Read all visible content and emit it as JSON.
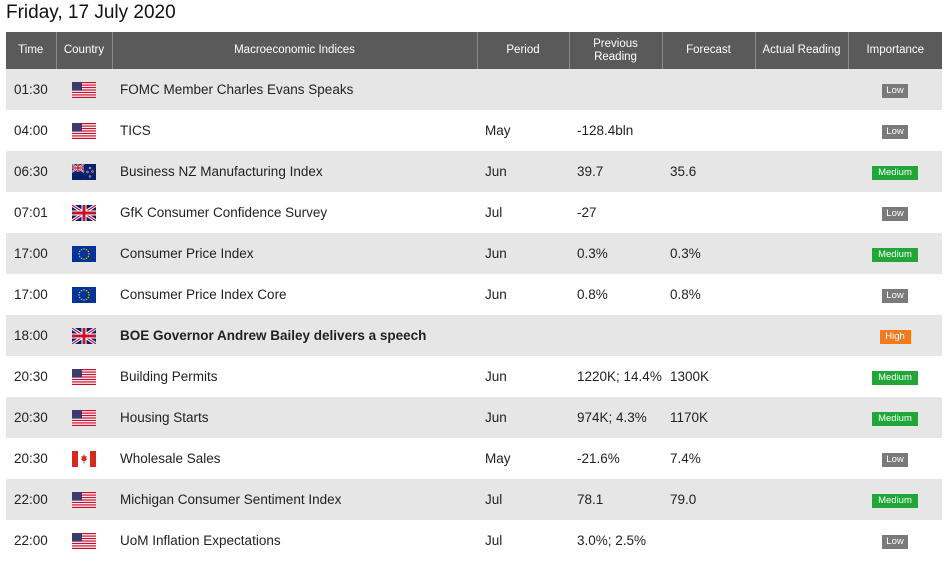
{
  "page_title": "Friday, 17 July 2020",
  "columns": {
    "time": "Time",
    "country": "Country",
    "indices": "Macroeconomic Indices",
    "period": "Period",
    "previous": "Previous Reading",
    "forecast": "Forecast",
    "actual": "Actual Reading",
    "importance": "Importance"
  },
  "rows": [
    {
      "time": "01:30",
      "country_icon": "us-flag-icon",
      "index": "FOMC Member Charles Evans Speaks",
      "period": "",
      "previous": "",
      "forecast": "",
      "actual": "",
      "importance": "Low"
    },
    {
      "time": "04:00",
      "country_icon": "us-flag-icon",
      "index": "TICS",
      "period": "May",
      "previous": "-128.4bln",
      "forecast": "",
      "actual": "",
      "importance": "Low"
    },
    {
      "time": "06:30",
      "country_icon": "nz-flag-icon",
      "index": "Business NZ Manufacturing Index",
      "period": "Jun",
      "previous": "39.7",
      "forecast": "35.6",
      "actual": "",
      "importance": "Medium"
    },
    {
      "time": "07:01",
      "country_icon": "uk-flag-icon",
      "index": "GfK Consumer Confidence Survey",
      "period": "Jul",
      "previous": "-27",
      "forecast": "",
      "actual": "",
      "importance": "Low"
    },
    {
      "time": "17:00",
      "country_icon": "eu-flag-icon",
      "index": "Consumer Price Index",
      "period": "Jun",
      "previous": "0.3%",
      "forecast": "0.3%",
      "actual": "",
      "importance": "Medium"
    },
    {
      "time": "17:00",
      "country_icon": "eu-flag-icon",
      "index": "Consumer Price Index Core",
      "period": "Jun",
      "previous": "0.8%",
      "forecast": "0.8%",
      "actual": "",
      "importance": "Low"
    },
    {
      "time": "18:00",
      "country_icon": "uk-flag-icon",
      "index": "BOE Governor Andrew Bailey delivers a speech",
      "period": "",
      "previous": "",
      "forecast": "",
      "actual": "",
      "importance": "High"
    },
    {
      "time": "20:30",
      "country_icon": "us-flag-icon",
      "index": "Building Permits",
      "period": "Jun",
      "previous": "1220K; 14.4%",
      "forecast": "1300K",
      "actual": "",
      "importance": "Medium"
    },
    {
      "time": "20:30",
      "country_icon": "us-flag-icon",
      "index": "Housing Starts",
      "period": "Jun",
      "previous": "974K; 4.3%",
      "forecast": "1170K",
      "actual": "",
      "importance": "Medium"
    },
    {
      "time": "20:30",
      "country_icon": "ca-flag-icon",
      "index": "Wholesale Sales",
      "period": "May",
      "previous": "-21.6%",
      "forecast": "7.4%",
      "actual": "",
      "importance": "Low"
    },
    {
      "time": "22:00",
      "country_icon": "us-flag-icon",
      "index": "Michigan Consumer Sentiment Index",
      "period": "Jul",
      "previous": "78.1",
      "forecast": "79.0",
      "actual": "",
      "importance": "Medium"
    },
    {
      "time": "22:00",
      "country_icon": "us-flag-icon",
      "index": "UoM Inflation Expectations",
      "period": "Jul",
      "previous": "3.0%; 2.5%",
      "forecast": "",
      "actual": "",
      "importance": "Low"
    }
  ],
  "colors": {
    "header_bg": "#5a5a5a",
    "row_alt": "#e6e6e6",
    "low": "#7a7a7a",
    "medium": "#22a63a",
    "high": "#f07a1e"
  }
}
